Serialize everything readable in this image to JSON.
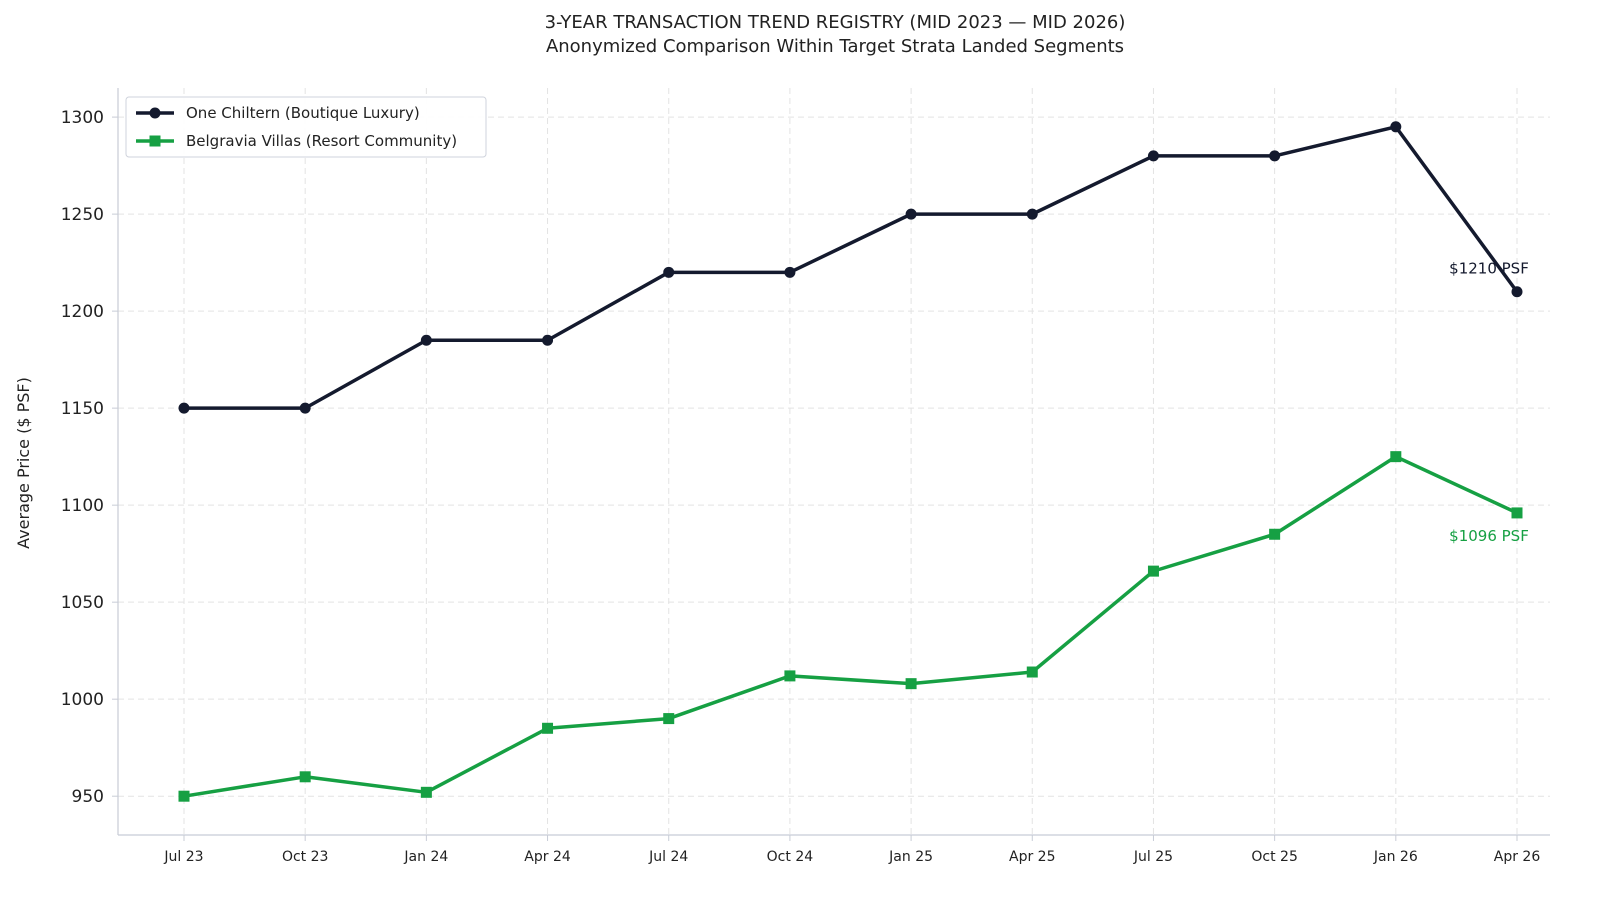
{
  "chart_data": {
    "type": "line",
    "title": "3-YEAR TRANSACTION TREND REGISTRY (MID 2023 — MID 2026)",
    "subtitle": "Anonymized Comparison Within Target Strata Landed Segments",
    "xlabel": "",
    "ylabel": "Average Price ($ PSF)",
    "ylim": [
      930,
      1315
    ],
    "yticks": [
      "950",
      "1000",
      "1050",
      "1100",
      "1150",
      "1200",
      "1250",
      "1300"
    ],
    "grid": true,
    "legend_position": "top-left",
    "categories": [
      "Jul 23",
      "Oct 23",
      "Jan 24",
      "Apr 24",
      "Jul 24",
      "Oct 24",
      "Jan 25",
      "Apr 25",
      "Jul 25",
      "Oct 25",
      "Jan 26",
      "Apr 26"
    ],
    "series": [
      {
        "name": "One Chiltern (Boutique Luxury)",
        "color": "#141a2e",
        "marker": "circle",
        "values": [
          1150,
          1150,
          1185,
          1185,
          1220,
          1220,
          1250,
          1250,
          1280,
          1280,
          1295,
          1210
        ]
      },
      {
        "name": "Belgravia Villas (Resort Community)",
        "color": "#16a043",
        "marker": "square",
        "values": [
          950,
          960,
          952,
          985,
          990,
          1012,
          1008,
          1014,
          1066,
          1085,
          1125,
          1096
        ]
      }
    ],
    "annotations": [
      {
        "text": "$1210 PSF",
        "series": 0,
        "category": "Apr 26",
        "color": "#141a2e",
        "placement": "above"
      },
      {
        "text": "$1096 PSF",
        "series": 1,
        "category": "Apr 26",
        "color": "#16a043",
        "placement": "below"
      }
    ]
  }
}
